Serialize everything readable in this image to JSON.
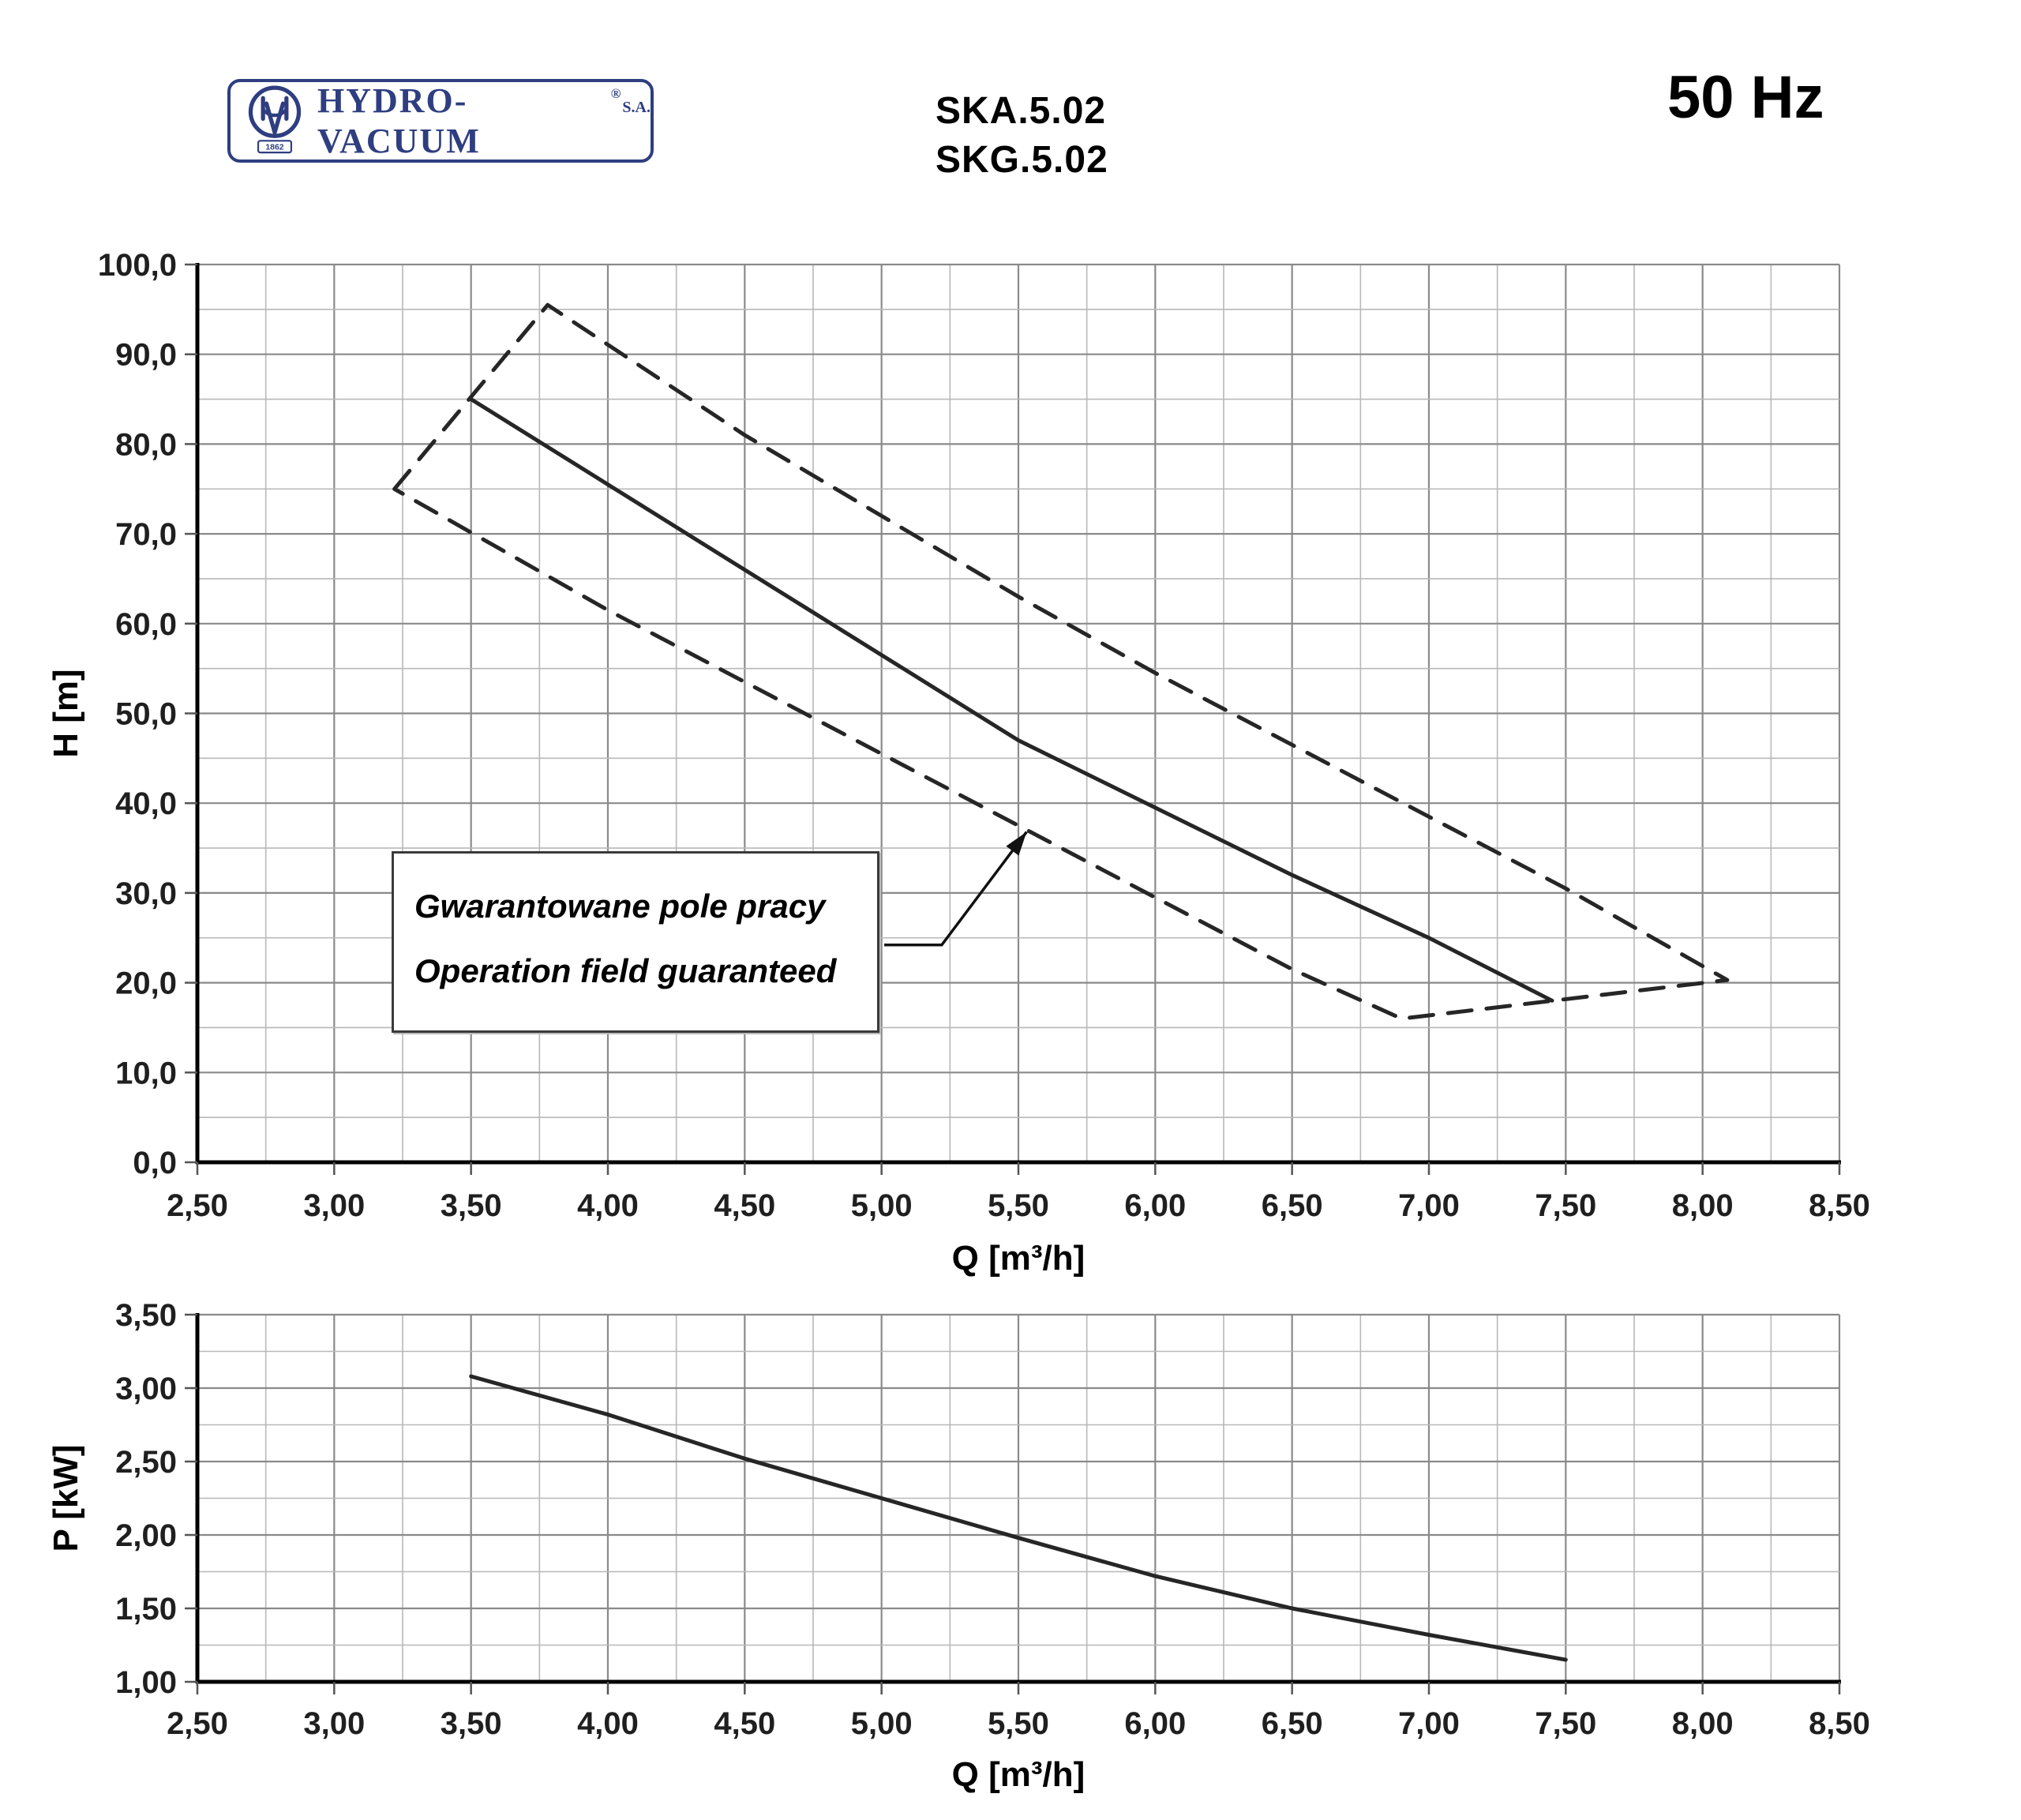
{
  "header": {
    "logo": {
      "name": "HYDRO-VACUUM",
      "reg": "®",
      "suffix": "S.A.",
      "year": "1862"
    },
    "models": [
      "SKA.5.02",
      "SKG.5.02"
    ],
    "frequency": "50 Hz"
  },
  "annotation": {
    "line1": "Gwarantowane pole pracy",
    "line2": "Operation field guaranteed",
    "arrow": {
      "chart": "hq",
      "x": [
        5.01,
        5.22,
        5.53
      ],
      "y": [
        24.2,
        24.2,
        36.8
      ]
    }
  },
  "colors": {
    "brand_navy": "#2e3e80",
    "curve": "#262626",
    "grid_minor": "#b8b8b8",
    "grid_major": "#8a8a8a",
    "axis": "#000000",
    "tick_text": "#1f1f1f"
  },
  "chart_data": [
    {
      "id": "hq",
      "type": "line",
      "title": "",
      "xlabel": "Q [m³/h]",
      "ylabel": "H  [m]",
      "xlim": [
        2.5,
        8.5
      ],
      "ylim": [
        0,
        100
      ],
      "x_major_step": 0.5,
      "x_minor_step": 0.25,
      "y_major_step": 10,
      "y_minor_step": 5,
      "grid": "major+minor",
      "legend": "none",
      "x_tick_labels": [
        "2,50",
        "3,00",
        "3,50",
        "4,00",
        "4,50",
        "5,00",
        "5,50",
        "6,00",
        "6,50",
        "7,00",
        "7,50",
        "8,00",
        "8,50"
      ],
      "y_tick_labels": [
        "0,0",
        "10,0",
        "20,0",
        "30,0",
        "40,0",
        "50,0",
        "60,0",
        "70,0",
        "80,0",
        "90,0",
        "100,0"
      ],
      "series": [
        {
          "name": "pump-curve",
          "style": "solid",
          "x": [
            3.5,
            4.0,
            4.5,
            5.0,
            5.5,
            6.0,
            6.5,
            7.0,
            7.45
          ],
          "y": [
            85.0,
            75.5,
            66.0,
            56.5,
            47.0,
            39.5,
            32.0,
            25.0,
            18.0
          ]
        },
        {
          "name": "operation-field-boundary",
          "style": "dashed",
          "x": [
            3.22,
            3.78,
            4.5,
            5.0,
            5.5,
            6.0,
            6.5,
            7.0,
            7.5,
            8.09,
            6.9,
            6.5,
            6.0,
            5.5,
            5.0,
            4.5,
            4.0,
            3.22
          ],
          "y": [
            75.0,
            95.5,
            81.0,
            72.0,
            63.0,
            54.5,
            46.5,
            38.5,
            30.5,
            20.3,
            16.0,
            21.5,
            29.5,
            37.5,
            45.5,
            53.5,
            61.5,
            75.0
          ]
        }
      ]
    },
    {
      "id": "pq",
      "type": "line",
      "title": "",
      "xlabel": "Q [m³/h]",
      "ylabel": "P [kW]",
      "xlim": [
        2.5,
        8.5
      ],
      "ylim": [
        1.0,
        3.5
      ],
      "x_major_step": 0.5,
      "x_minor_step": 0.25,
      "y_major_step": 0.5,
      "y_minor_step": 0.25,
      "grid": "major+minor",
      "legend": "none",
      "x_tick_labels": [
        "2,50",
        "3,00",
        "3,50",
        "4,00",
        "4,50",
        "5,00",
        "5,50",
        "6,00",
        "6,50",
        "7,00",
        "7,50",
        "8,00",
        "8,50"
      ],
      "y_tick_labels": [
        "1,00",
        "1,50",
        "2,00",
        "2,50",
        "3,00",
        "3,50"
      ],
      "series": [
        {
          "name": "power-curve",
          "style": "solid",
          "x": [
            3.5,
            4.0,
            4.5,
            5.0,
            5.5,
            6.0,
            6.5,
            7.0,
            7.5
          ],
          "y": [
            3.08,
            2.82,
            2.52,
            2.25,
            1.98,
            1.72,
            1.5,
            1.32,
            1.15
          ]
        }
      ]
    }
  ]
}
